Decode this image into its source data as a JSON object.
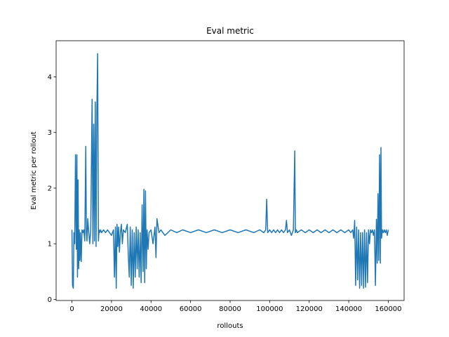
{
  "chart_data": {
    "type": "line",
    "title": "Eval metric",
    "xlabel": "rollouts",
    "ylabel": "Eval metric per rollout",
    "xlim": [
      -8000,
      168000
    ],
    "ylim": [
      -0.02,
      4.65
    ],
    "xticks": [
      0,
      20000,
      40000,
      60000,
      80000,
      100000,
      120000,
      140000,
      160000
    ],
    "xtick_labels": [
      "0",
      "20000",
      "40000",
      "60000",
      "80000",
      "100000",
      "120000",
      "140000",
      "160000"
    ],
    "yticks": [
      0,
      1,
      2,
      3,
      4
    ],
    "ytick_labels": [
      "0",
      "1",
      "2",
      "3",
      "4"
    ],
    "grid": false,
    "line_color": "#1f77b4",
    "series": [
      {
        "x": [
          0,
          300,
          700,
          1000,
          1400,
          1800,
          2200,
          2500,
          2800,
          3100,
          3400,
          3700,
          4000,
          4300,
          4700,
          5100,
          5500,
          6000,
          6500,
          7000,
          7300,
          7600,
          8000,
          8500,
          9000,
          9500,
          10200,
          10600,
          11000,
          11400,
          11800,
          12200,
          12600,
          13000,
          13400,
          13700,
          14000,
          14500,
          15000,
          16000,
          17000,
          18000,
          19000,
          20000,
          21000,
          21500,
          22000,
          22400,
          22800,
          23200,
          23600,
          24000,
          24500,
          25000,
          25500,
          26000,
          27000,
          28000,
          28500,
          29000,
          29500,
          30000,
          30500,
          31000,
          31500,
          32000,
          32500,
          33000,
          33500,
          34000,
          34500,
          35000,
          35500,
          36000,
          36400,
          36800,
          37200,
          37600,
          38000,
          38500,
          39000,
          40000,
          41000,
          42000,
          42500,
          43000,
          44000,
          45000,
          47000,
          50000,
          53000,
          56000,
          60000,
          64000,
          68000,
          72000,
          76000,
          80000,
          84000,
          88000,
          92000,
          95000,
          97000,
          98000,
          98500,
          99000,
          100000,
          101000,
          102000,
          103000,
          104000,
          105000,
          106000,
          107000,
          108000,
          108500,
          109000,
          110000,
          111000,
          112000,
          112700,
          113000,
          113500,
          114000,
          116000,
          118000,
          120000,
          122000,
          124000,
          126000,
          128000,
          130000,
          132000,
          134000,
          136000,
          138000,
          140000,
          141000,
          142000,
          142500,
          143000,
          143500,
          144000,
          144500,
          145000,
          145500,
          146000,
          146500,
          147000,
          147500,
          148000,
          148500,
          149000,
          149500,
          150000,
          150500,
          151000,
          151500,
          152000,
          152500,
          153000,
          153500,
          154000,
          154400,
          154800,
          155200,
          155600,
          156000,
          156300,
          156600,
          157000,
          157500,
          158000,
          158500,
          159000,
          159500,
          160000
        ],
        "y": [
          1.25,
          0.25,
          0.2,
          1.2,
          1.0,
          2.6,
          0.9,
          2.6,
          0.4,
          2.15,
          0.55,
          1.25,
          0.7,
          1.2,
          0.68,
          1.25,
          1.2,
          1.25,
          1.05,
          2.75,
          1.2,
          1.05,
          1.45,
          1.2,
          1.0,
          1.25,
          3.6,
          1.0,
          3.15,
          1.05,
          3.55,
          0.95,
          3.4,
          4.42,
          1.05,
          1.25,
          1.2,
          1.25,
          1.2,
          1.25,
          1.2,
          1.25,
          1.2,
          1.15,
          1.25,
          0.4,
          1.3,
          0.2,
          1.35,
          0.95,
          1.3,
          0.85,
          1.2,
          1.35,
          1.0,
          1.25,
          1.2,
          1.35,
          0.8,
          0.4,
          1.3,
          0.25,
          1.25,
          0.2,
          1.2,
          0.4,
          1.3,
          0.55,
          1.25,
          0.4,
          1.2,
          0.3,
          1.7,
          0.5,
          1.98,
          0.3,
          1.95,
          0.55,
          1.25,
          0.9,
          1.2,
          1.25,
          1.0,
          1.3,
          0.75,
          1.45,
          1.2,
          1.25,
          1.15,
          1.25,
          1.2,
          1.25,
          1.2,
          1.25,
          1.2,
          1.25,
          1.2,
          1.25,
          1.2,
          1.25,
          1.2,
          1.25,
          1.2,
          1.25,
          1.8,
          1.2,
          1.25,
          1.2,
          1.25,
          1.2,
          1.25,
          1.2,
          1.25,
          1.2,
          1.25,
          1.42,
          1.2,
          1.25,
          1.15,
          1.25,
          2.67,
          1.2,
          1.25,
          1.2,
          1.25,
          1.2,
          1.25,
          1.2,
          1.25,
          1.2,
          1.25,
          1.2,
          1.25,
          1.2,
          1.25,
          1.2,
          1.25,
          1.2,
          1.25,
          1.1,
          1.42,
          0.25,
          1.3,
          0.35,
          1.25,
          0.2,
          1.2,
          0.25,
          1.2,
          0.2,
          1.25,
          0.22,
          1.2,
          0.3,
          1.25,
          1.0,
          1.25,
          1.2,
          1.25,
          1.15,
          1.25,
          0.25,
          1.44,
          0.65,
          1.9,
          0.7,
          2.6,
          0.65,
          2.73,
          1.1,
          1.25,
          1.2,
          1.25,
          1.2,
          1.25,
          1.15,
          1.25
        ]
      }
    ]
  }
}
